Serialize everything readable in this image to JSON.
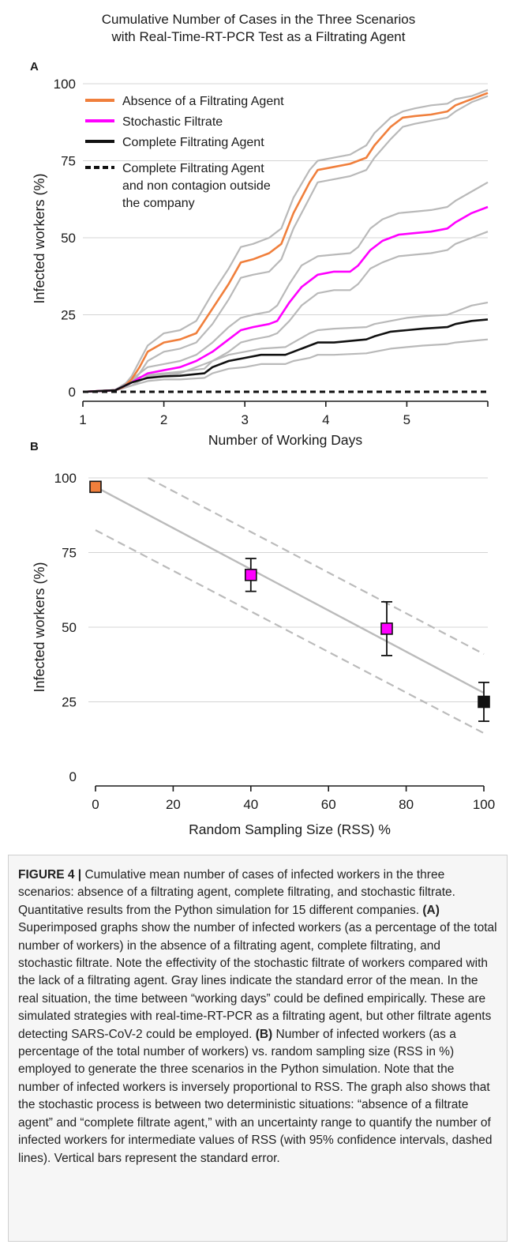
{
  "figure": {
    "title_line1": "Cumulative Number of Cases in the Three Scenarios",
    "title_line2": "with Real-Time-RT-PCR Test as a Filtrating Agent"
  },
  "chart_data": [
    {
      "panel": "A",
      "type": "line",
      "xlabel": "Number of Working Days",
      "ylabel": "Infected workers (%)",
      "xlim": [
        1,
        6
      ],
      "ylim": [
        0,
        100
      ],
      "xticks": [
        "1",
        "2",
        "3",
        "4",
        "5"
      ],
      "yticks": [
        "0",
        "25",
        "50",
        "75",
        "100"
      ],
      "grid": "horizontal",
      "legend_position": "top-left",
      "legend": [
        {
          "label": "Absence of a Filtrating Agent",
          "color": "#f07f3c",
          "style": "solid"
        },
        {
          "label": "Stochastic Filtrate",
          "color": "#ff00ff",
          "style": "solid"
        },
        {
          "label": "Complete Filtrating Agent",
          "color": "#111111",
          "style": "solid"
        },
        {
          "label_line1": "Complete Filtrating Agent",
          "label_line2": "and non contagion outside",
          "label_line3": "the company",
          "color": "#111111",
          "style": "dashed"
        }
      ],
      "series": [
        {
          "color": "#f07f3c",
          "role": "mean",
          "x": [
            1,
            1.4,
            1.5,
            1.6,
            1.7,
            1.8,
            2,
            2.2,
            2.4,
            2.6,
            2.8,
            2.95,
            3.1,
            3.3,
            3.45,
            3.6,
            3.8,
            3.9,
            4.1,
            4.3,
            4.5,
            4.6,
            4.8,
            4.95,
            5.1,
            5.3,
            5.5,
            5.6,
            5.8,
            6
          ],
          "y": [
            0,
            0.5,
            1.5,
            4,
            8,
            13,
            16,
            17,
            19,
            27,
            35,
            42,
            43,
            45,
            48,
            58,
            68,
            72,
            73,
            74,
            76,
            80,
            86,
            89,
            89.5,
            90,
            91,
            93,
            95,
            97
          ]
        },
        {
          "color": "#b9b9b9",
          "role": "se",
          "x": [
            1,
            1.4,
            1.5,
            1.6,
            1.7,
            1.8,
            2,
            2.2,
            2.4,
            2.6,
            2.8,
            2.95,
            3.1,
            3.3,
            3.45,
            3.6,
            3.8,
            3.9,
            4.1,
            4.3,
            4.5,
            4.6,
            4.8,
            4.95,
            5.1,
            5.3,
            5.5,
            5.6,
            5.8,
            6
          ],
          "y": [
            0,
            0.6,
            1.8,
            5,
            10,
            15,
            19,
            20,
            23,
            32,
            40,
            47,
            48,
            50,
            53,
            63,
            72,
            75,
            76,
            77,
            80,
            84,
            89,
            91,
            92,
            93,
            93.5,
            95,
            96,
            98
          ]
        },
        {
          "color": "#b9b9b9",
          "role": "se",
          "x": [
            1,
            1.4,
            1.5,
            1.6,
            1.7,
            1.8,
            2,
            2.2,
            2.4,
            2.6,
            2.8,
            2.95,
            3.1,
            3.3,
            3.45,
            3.6,
            3.8,
            3.9,
            4.1,
            4.3,
            4.5,
            4.6,
            4.8,
            4.95,
            5.1,
            5.3,
            5.5,
            5.6,
            5.8,
            6
          ],
          "y": [
            0,
            0.4,
            1.2,
            3,
            6,
            10,
            13,
            14,
            16,
            22,
            30,
            37,
            38,
            39,
            43,
            53,
            63,
            68,
            69,
            70,
            72,
            76,
            82,
            86,
            87,
            88,
            89,
            91,
            94,
            96
          ]
        },
        {
          "color": "#ff00ff",
          "role": "mean",
          "x": [
            1,
            1.4,
            1.6,
            1.8,
            2,
            2.2,
            2.4,
            2.6,
            2.8,
            2.95,
            3.1,
            3.3,
            3.4,
            3.55,
            3.7,
            3.9,
            4.1,
            4.3,
            4.4,
            4.55,
            4.7,
            4.9,
            5.1,
            5.3,
            5.5,
            5.6,
            5.8,
            6
          ],
          "y": [
            0,
            0.5,
            3,
            6,
            7,
            8,
            10,
            13,
            17,
            20,
            21,
            22,
            23,
            29,
            34,
            38,
            39,
            39,
            41,
            46,
            49,
            51,
            51.5,
            52,
            53,
            55,
            58,
            60
          ]
        },
        {
          "color": "#b9b9b9",
          "role": "se",
          "x": [
            1,
            1.4,
            1.6,
            1.8,
            2,
            2.2,
            2.4,
            2.6,
            2.8,
            2.95,
            3.1,
            3.3,
            3.4,
            3.55,
            3.7,
            3.9,
            4.1,
            4.3,
            4.4,
            4.55,
            4.7,
            4.9,
            5.1,
            5.3,
            5.5,
            5.6,
            5.8,
            6
          ],
          "y": [
            0,
            0.6,
            4,
            8,
            9,
            10,
            12,
            16,
            21,
            24,
            25,
            26,
            28,
            35,
            41,
            44,
            44.5,
            45,
            47,
            53,
            56,
            58,
            58.5,
            59,
            60,
            62,
            65,
            68
          ]
        },
        {
          "color": "#b9b9b9",
          "role": "se",
          "x": [
            1,
            1.4,
            1.6,
            1.8,
            2,
            2.2,
            2.4,
            2.6,
            2.8,
            2.95,
            3.1,
            3.3,
            3.4,
            3.55,
            3.7,
            3.9,
            4.1,
            4.3,
            4.4,
            4.55,
            4.7,
            4.9,
            5.1,
            5.3,
            5.5,
            5.6,
            5.8,
            6
          ],
          "y": [
            0,
            0.4,
            2,
            5,
            5.5,
            6,
            8,
            10,
            13,
            16,
            17,
            18,
            19,
            23,
            28,
            32,
            33,
            33,
            35,
            40,
            42,
            44,
            44.5,
            45,
            46,
            48,
            50,
            52
          ]
        },
        {
          "color": "#111111",
          "role": "mean",
          "x": [
            1,
            1.4,
            1.6,
            1.8,
            2,
            2.2,
            2.5,
            2.6,
            2.8,
            3,
            3.2,
            3.5,
            3.6,
            3.8,
            3.9,
            4.1,
            4.5,
            4.6,
            4.8,
            5,
            5.2,
            5.5,
            5.6,
            5.8,
            6
          ],
          "y": [
            0,
            0.5,
            3,
            4.5,
            5,
            5.2,
            6,
            8,
            10,
            11,
            12,
            12,
            13,
            15,
            16,
            16,
            17,
            18,
            19.5,
            20,
            20.5,
            21,
            22,
            23,
            23.5
          ]
        },
        {
          "color": "#b9b9b9",
          "role": "se",
          "x": [
            1,
            1.4,
            1.6,
            1.8,
            2,
            2.2,
            2.5,
            2.6,
            2.8,
            3,
            3.2,
            3.5,
            3.6,
            3.8,
            3.9,
            4.1,
            4.5,
            4.6,
            4.8,
            5,
            5.2,
            5.5,
            5.6,
            5.8,
            6
          ],
          "y": [
            0,
            0.6,
            4,
            5.5,
            6,
            6.5,
            7.5,
            10,
            12,
            13,
            14,
            14.5,
            16,
            19,
            20,
            20.5,
            21,
            22,
            23,
            24,
            24.5,
            25,
            26,
            28,
            29
          ]
        },
        {
          "color": "#b9b9b9",
          "role": "se",
          "x": [
            1,
            1.4,
            1.6,
            1.8,
            2,
            2.2,
            2.5,
            2.6,
            2.8,
            3,
            3.2,
            3.5,
            3.6,
            3.8,
            3.9,
            4.1,
            4.5,
            4.6,
            4.8,
            5,
            5.2,
            5.5,
            5.6,
            5.8,
            6
          ],
          "y": [
            0,
            0.4,
            2,
            3.5,
            4,
            4,
            4.5,
            6,
            7.5,
            8,
            9,
            9,
            10,
            11,
            12,
            12,
            12.5,
            13,
            14,
            14.5,
            15,
            15.5,
            16,
            16.5,
            17
          ]
        },
        {
          "color": "#111111",
          "role": "mean-dashed",
          "x": [
            1,
            6
          ],
          "y": [
            0,
            0
          ]
        }
      ]
    },
    {
      "panel": "B",
      "type": "scatter",
      "xlabel": "Random Sampling Size (RSS) %",
      "ylabel": "Infected workers (%)",
      "xlim": [
        0,
        100
      ],
      "ylim": [
        0,
        100
      ],
      "xticks": [
        "0",
        "20",
        "40",
        "60",
        "80",
        "100"
      ],
      "yticks": [
        "0",
        "25",
        "50",
        "75",
        "100"
      ],
      "grid": "horizontal",
      "points": [
        {
          "x": 0,
          "y": 97,
          "se": 0,
          "color": "#f07f3c"
        },
        {
          "x": 40,
          "y": 67.5,
          "se": 5.5,
          "color": "#ff00ff"
        },
        {
          "x": 75,
          "y": 49.5,
          "se": 9,
          "color": "#ff00ff"
        },
        {
          "x": 100,
          "y": 25,
          "se": 6.5,
          "color": "#111111"
        }
      ],
      "fit_line": {
        "x": [
          0,
          100
        ],
        "y": [
          97,
          28
        ],
        "color": "#bbbbbb"
      },
      "ci_upper": {
        "x": [
          13.5,
          100
        ],
        "y": [
          100,
          41
        ],
        "color": "#bbbbbb"
      },
      "ci_lower": {
        "x": [
          0,
          100
        ],
        "y": [
          82.5,
          14.5
        ],
        "color": "#bbbbbb"
      }
    }
  ],
  "caption": {
    "label": "FIGURE 4 |",
    "text1": " Cumulative mean number of cases of infected workers in the three scenarios: absence of a filtrating agent, complete filtrating, and stochastic filtrate. Quantitative results from the Python simulation for 15 different companies. ",
    "label_a": "(A)",
    "text2": " Superimposed graphs show the number of infected workers (as a percentage of the total number of workers) in the absence of a filtrating agent, complete filtrating, and stochastic filtrate. Note the effectivity of the stochastic filtrate of workers compared with the lack of a filtrating agent. Gray lines indicate the standard error of the mean. In the real situation, the time between “working days” could be defined empirically. These are simulated strategies with real-time-RT-PCR as a filtrating agent, but other filtrate agents detecting SARS-CoV-2 could be employed. ",
    "label_b": "(B)",
    "text3": " Number of infected workers (as a percentage of the total number of workers) vs. random sampling size (RSS in %) employed to generate the three scenarios in the Python simulation. Note that the number of infected workers is inversely proportional to RSS. The graph also shows that the stochastic process is between two deterministic situations: “absence of a filtrate agent” and “complete filtrate agent,” with an uncertainty range to quantify the number of infected workers for intermediate values of RSS (with 95% confidence intervals, dashed lines). Vertical bars represent the standard error."
  }
}
